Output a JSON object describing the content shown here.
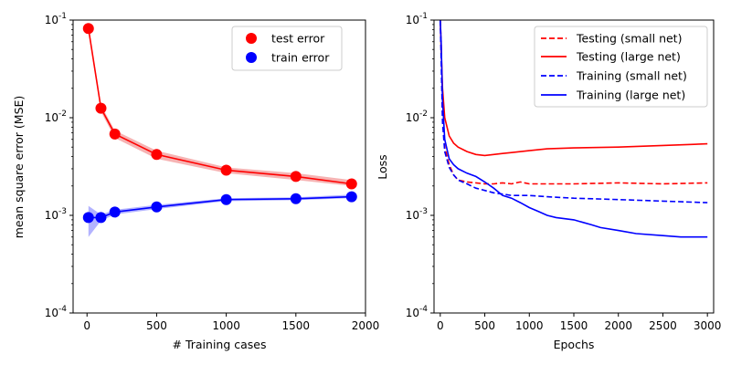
{
  "colors": {
    "test": "#ff0000",
    "train": "#0000ff",
    "band_test": "#f08080",
    "band_train": "#8080ff"
  },
  "chart_data": [
    {
      "type": "scatter",
      "xlabel": "# Training cases",
      "ylabel": "mean square error (MSE)",
      "xlim": [
        -100,
        2000
      ],
      "ylim": [
        0.0001,
        0.1
      ],
      "yscale": "log",
      "grid": false,
      "legend_position": "top-right",
      "x_ticks": [
        0,
        500,
        1000,
        1500,
        2000
      ],
      "y_tick_labels": [
        "10^-4",
        "10^-3",
        "10^-2",
        "10^-1"
      ],
      "series": [
        {
          "name": "test error",
          "color": "#ff0000",
          "x": [
            10,
            100,
            200,
            500,
            1000,
            1500,
            1900
          ],
          "values": [
            0.082,
            0.0125,
            0.0068,
            0.0042,
            0.0029,
            0.0025,
            0.0021
          ],
          "band_low": [
            0.075,
            0.0115,
            0.0062,
            0.0038,
            0.0027,
            0.0023,
            0.002
          ],
          "band_high": [
            0.089,
            0.0135,
            0.0074,
            0.0046,
            0.0031,
            0.0027,
            0.0023
          ]
        },
        {
          "name": "train error",
          "color": "#0000ff",
          "x": [
            10,
            100,
            200,
            500,
            1000,
            1500,
            1900
          ],
          "values": [
            0.00095,
            0.00095,
            0.00108,
            0.00122,
            0.00145,
            0.00148,
            0.00155
          ],
          "band_low": [
            0.0006,
            0.00088,
            0.00102,
            0.00116,
            0.0014,
            0.00143,
            0.0015
          ],
          "band_high": [
            0.00125,
            0.00102,
            0.00114,
            0.00128,
            0.0015,
            0.00153,
            0.00163
          ]
        }
      ]
    },
    {
      "type": "line",
      "xlabel": "Epochs",
      "ylabel": "Loss",
      "xlim": [
        -70,
        3070
      ],
      "ylim": [
        0.0001,
        0.1
      ],
      "yscale": "log",
      "grid": false,
      "legend_position": "top-right",
      "x_ticks": [
        0,
        500,
        1000,
        1500,
        2000,
        2500,
        3000
      ],
      "y_tick_labels": [
        "10^-4",
        "10^-3",
        "10^-2",
        "10^-1"
      ],
      "series": [
        {
          "name": "Testing (small net)",
          "color": "#ff0000",
          "dash": true,
          "x": [
            0,
            10,
            25,
            50,
            100,
            150,
            200,
            300,
            400,
            500,
            600,
            700,
            800,
            900,
            1000,
            1200,
            1500,
            2000,
            2500,
            3000
          ],
          "values": [
            0.1,
            0.06,
            0.01,
            0.005,
            0.0033,
            0.0026,
            0.0023,
            0.0022,
            0.00215,
            0.0021,
            0.0021,
            0.00215,
            0.0021,
            0.0022,
            0.0021,
            0.0021,
            0.0021,
            0.00215,
            0.0021,
            0.00215
          ]
        },
        {
          "name": "Testing (large net)",
          "color": "#ff0000",
          "dash": false,
          "x": [
            0,
            10,
            25,
            50,
            100,
            150,
            200,
            300,
            400,
            500,
            600,
            700,
            800,
            1000,
            1200,
            1500,
            2000,
            2500,
            3000
          ],
          "values": [
            0.1,
            0.05,
            0.02,
            0.01,
            0.0065,
            0.0055,
            0.005,
            0.0045,
            0.0042,
            0.0041,
            0.0042,
            0.0043,
            0.0044,
            0.0046,
            0.0048,
            0.0049,
            0.005,
            0.0052,
            0.0054
          ]
        },
        {
          "name": "Training (small net)",
          "color": "#0000ff",
          "dash": true,
          "x": [
            0,
            10,
            25,
            50,
            100,
            150,
            200,
            300,
            400,
            500,
            600,
            700,
            800,
            1000,
            1200,
            1500,
            2000,
            2500,
            3000
          ],
          "values": [
            0.1,
            0.04,
            0.009,
            0.0045,
            0.0031,
            0.0026,
            0.0023,
            0.0021,
            0.0019,
            0.0018,
            0.0017,
            0.00165,
            0.0016,
            0.0016,
            0.00155,
            0.0015,
            0.00145,
            0.0014,
            0.00135
          ]
        },
        {
          "name": "Training (large net)",
          "color": "#0000ff",
          "dash": false,
          "x": [
            0,
            10,
            25,
            50,
            100,
            150,
            200,
            300,
            400,
            500,
            600,
            700,
            800,
            900,
            1000,
            1100,
            1200,
            1300,
            1500,
            1700,
            1800,
            2000,
            2200,
            2500,
            2700,
            3000
          ],
          "values": [
            0.1,
            0.06,
            0.015,
            0.006,
            0.0038,
            0.0033,
            0.003,
            0.0027,
            0.0025,
            0.0022,
            0.0019,
            0.0016,
            0.0015,
            0.00135,
            0.0012,
            0.0011,
            0.001,
            0.00095,
            0.0009,
            0.0008,
            0.00075,
            0.0007,
            0.00065,
            0.00062,
            0.0006,
            0.0006
          ]
        }
      ]
    }
  ]
}
